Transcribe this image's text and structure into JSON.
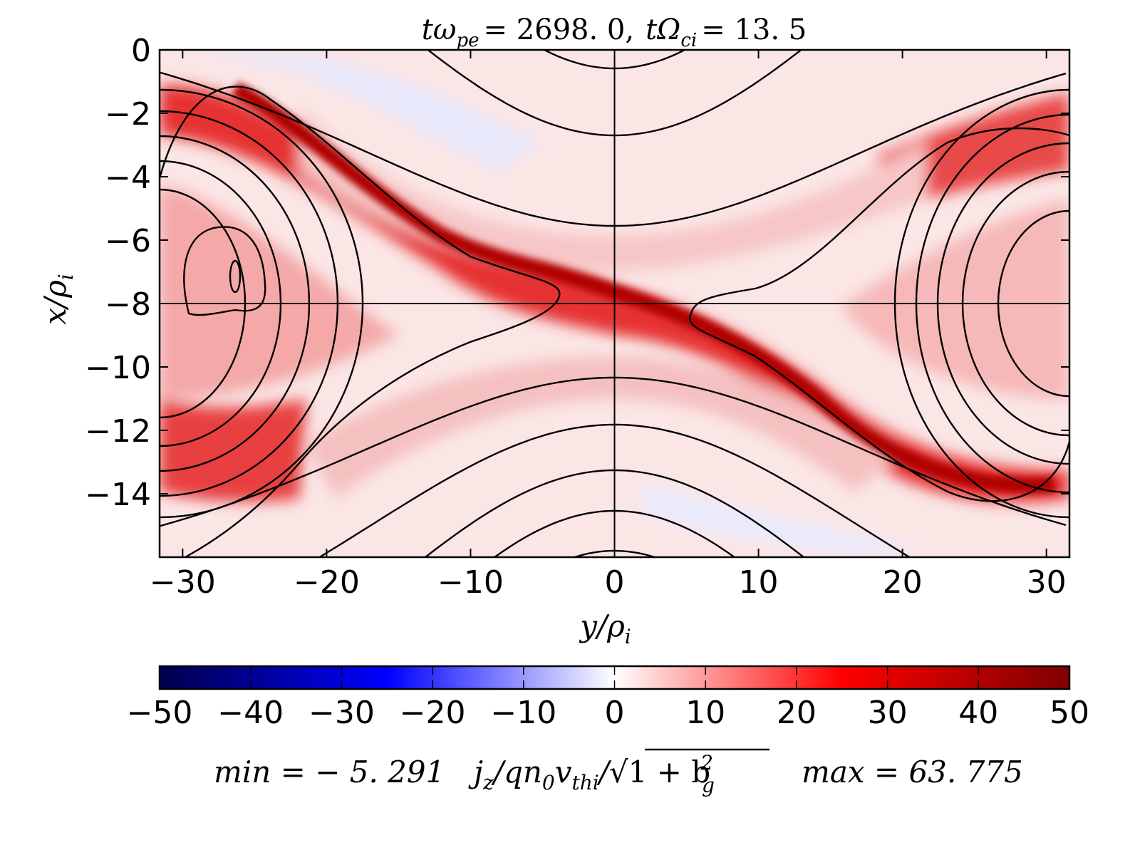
{
  "chart_data": {
    "type": "heatmap",
    "title": {
      "a": "tω",
      "a_sub": "pe",
      "a_val": "= 2698. 0,",
      "b": "tΩ",
      "b_sub": "ci",
      "b_val": "= 13. 5"
    },
    "xlabel": {
      "main": "y/ρ",
      "sub": "i"
    },
    "ylabel": {
      "main": "x/ρ",
      "sub": "i"
    },
    "xlim": [
      -31.6,
      31.6
    ],
    "ylim": [
      -16,
      0
    ],
    "xticks": [
      -30,
      -20,
      -10,
      0,
      10,
      20,
      30
    ],
    "xtick_labels": [
      "−30",
      "−20",
      "−10",
      "0",
      "10",
      "20",
      "30"
    ],
    "yticks": [
      0,
      -2,
      -4,
      -6,
      -8,
      -10,
      -12,
      -14
    ],
    "ytick_labels": [
      "0",
      "−2",
      "−4",
      "−6",
      "−8",
      "−10",
      "−12",
      "−14"
    ],
    "crosshair": {
      "x": 0,
      "y": -8
    },
    "colormap": "seismic",
    "colors": {
      "low": "#00004c",
      "mid_low": "#0000ff",
      "zero": "#ffffff",
      "mid_high": "#ff0000",
      "high": "#7f0000"
    },
    "colorbar": {
      "range": [
        -50,
        50
      ],
      "ticks": [
        -50,
        -40,
        -30,
        -20,
        -10,
        0,
        10,
        20,
        30,
        40,
        50
      ],
      "tick_labels": [
        "−50",
        "−40",
        "−30",
        "−20",
        "−10",
        "0",
        "10",
        "20",
        "30",
        "40",
        "50"
      ],
      "min_label": "min = − 5. 291",
      "quantity": {
        "j": "j",
        "j_sub": "z",
        "mid": "/qn",
        "n_sub": "0",
        "v": "v",
        "v_sub": "thi",
        "sqrt": "/√",
        "inner": "1 + b",
        "b_sup": "2",
        "b_sub": "g"
      },
      "max_label": "max = 63. 775"
    },
    "data_min": -5.291,
    "data_max": 63.775,
    "contours": "magnetic flux lines overlaid (black)"
  }
}
